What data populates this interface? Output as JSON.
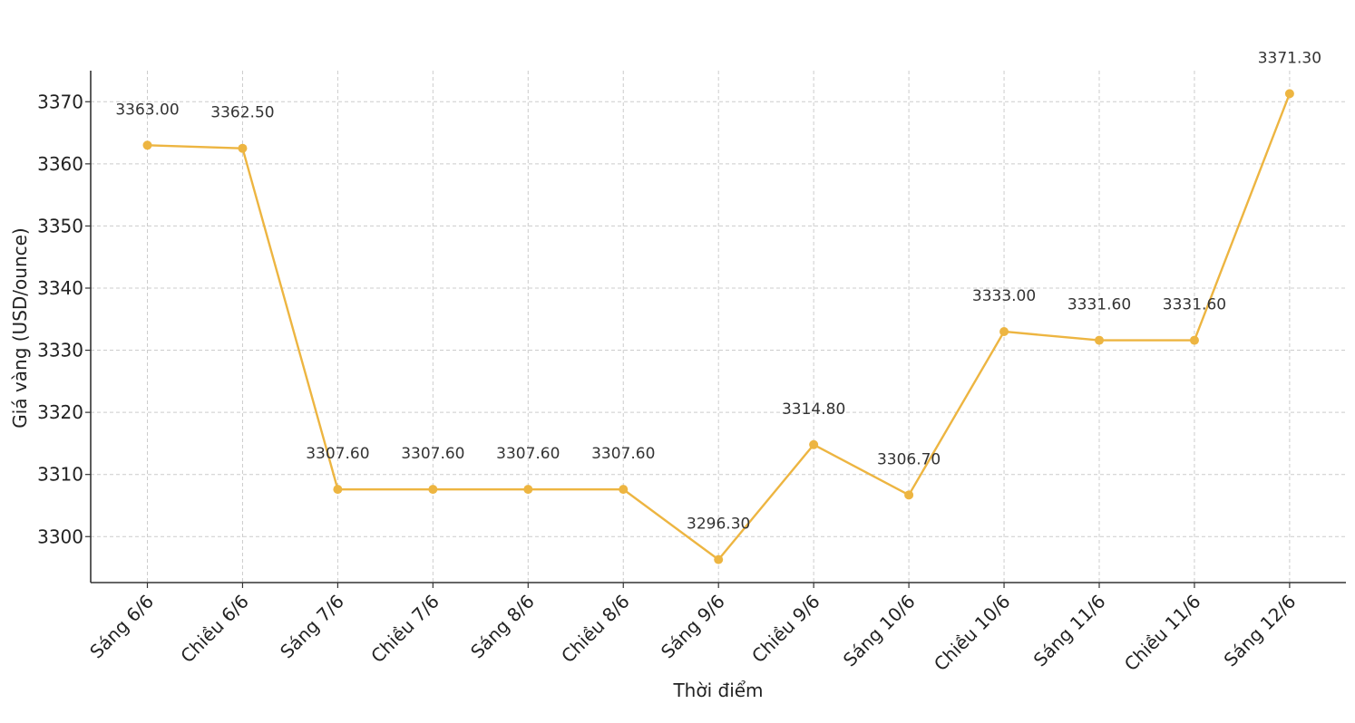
{
  "chart_data": {
    "type": "line",
    "title": "",
    "xlabel": "Thời điểm",
    "ylabel": "Giá vàng (USD/ounce)",
    "categories": [
      "Sáng 6/6",
      "Chiều 6/6",
      "Sáng 7/6",
      "Chiều 7/6",
      "Sáng 8/6",
      "Chiều 8/6",
      "Sáng 9/6",
      "Chiều 9/6",
      "Sáng 10/6",
      "Chiều 10/6",
      "Sáng 11/6",
      "Chiều 11/6",
      "Sáng 12/6"
    ],
    "series": [
      {
        "values": [
          3363.0,
          3362.5,
          3307.6,
          3307.6,
          3307.6,
          3307.6,
          3296.3,
          3314.8,
          3306.7,
          3333.0,
          3331.6,
          3331.6,
          3371.3
        ],
        "data_labels": [
          "3363.00",
          "3362.50",
          "3307.60",
          "3307.60",
          "3307.60",
          "3307.60",
          "3296.30",
          "3314.80",
          "3306.70",
          "3333.00",
          "3331.60",
          "3331.60",
          "3371.30"
        ],
        "color": "#EDB541"
      }
    ],
    "ylim": [
      3292.6,
      3375
    ],
    "yticks": [
      3300,
      3310,
      3320,
      3330,
      3340,
      3350,
      3360,
      3370
    ],
    "grid": true,
    "legend": "none",
    "markers": true
  }
}
